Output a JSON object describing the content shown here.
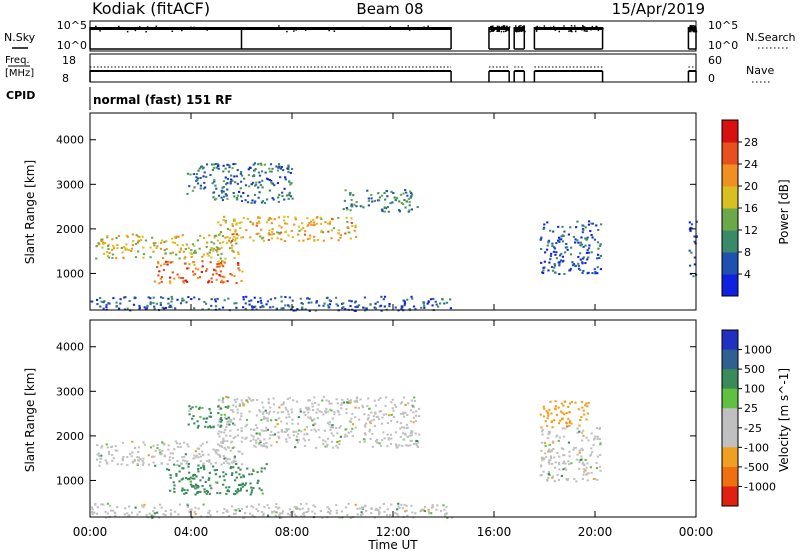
{
  "header": {
    "station": "Kodiak (fitACF)",
    "beam": "Beam 08",
    "date": "15/Apr/2019"
  },
  "top_panels": {
    "nsky_label": "N.Sky",
    "nsky_ticks": [
      "10^5",
      "10^0"
    ],
    "nsearch_label": "N.Search",
    "nsearch_ticks": [
      "10^5",
      "10^0"
    ],
    "freq_label_line1": "Freq.",
    "freq_label_line2": "[MHz]",
    "freq_ticks": [
      "18",
      "8"
    ],
    "nave_label": "Nave",
    "nave_ticks": [
      "60",
      "0"
    ],
    "cpid_label": "CPID",
    "cpid_text": "normal (fast) 151 RF"
  },
  "chart_data": [
    {
      "type": "heatmap",
      "title": "",
      "xlabel": "Time UT",
      "ylabel": "Slant Range [km]",
      "x_ticks": [
        "00:00",
        "04:00",
        "08:00",
        "12:00",
        "16:00",
        "20:00",
        "00:00"
      ],
      "x_range_hours": [
        0,
        24
      ],
      "y_ticks": [
        1000,
        2000,
        3000,
        4000
      ],
      "ylim": [
        180,
        4600
      ],
      "colorbar": {
        "label": "Power [dB]",
        "tick_labels": [
          "4",
          "8",
          "12",
          "16",
          "20",
          "24",
          "28"
        ],
        "colors": [
          "#1020e0",
          "#2050b0",
          "#3a8a6a",
          "#6aa84a",
          "#d8c020",
          "#f09020",
          "#e85020",
          "#d81010"
        ]
      },
      "data_segments_hours": [
        [
          0,
          14.3
        ],
        [
          15.8,
          16.6
        ],
        [
          16.8,
          17.2
        ],
        [
          17.6,
          20.3
        ],
        [
          23.7,
          24
        ]
      ],
      "echo_bands": [
        {
          "t0": 0.2,
          "t1": 6.0,
          "r0": 1350,
          "r1": 1900,
          "level": 20
        },
        {
          "t0": 5.0,
          "t1": 10.5,
          "r0": 1750,
          "r1": 2300,
          "level": 22
        },
        {
          "t0": 10.0,
          "t1": 13.0,
          "r0": 2400,
          "r1": 2900,
          "level": 12
        },
        {
          "t0": 2.5,
          "t1": 6.0,
          "r0": 800,
          "r1": 1300,
          "level": 26
        },
        {
          "t0": 3.8,
          "t1": 8.0,
          "r0": 2600,
          "r1": 3500,
          "level": 10
        },
        {
          "t0": 0.0,
          "t1": 14.3,
          "r0": 180,
          "r1": 500,
          "level": 8
        },
        {
          "t0": 17.8,
          "t1": 20.2,
          "r0": 1000,
          "r1": 2200,
          "level": 8
        },
        {
          "t0": 23.7,
          "t1": 24.0,
          "r0": 900,
          "r1": 2200,
          "level": 8
        }
      ]
    },
    {
      "type": "heatmap",
      "title": "",
      "xlabel": "Time UT",
      "ylabel": "Slant Range [km]",
      "x_ticks": [
        "00:00",
        "04:00",
        "08:00",
        "12:00",
        "16:00",
        "20:00",
        "00:00"
      ],
      "x_range_hours": [
        0,
        24
      ],
      "y_ticks": [
        1000,
        2000,
        3000,
        4000
      ],
      "ylim": [
        180,
        4600
      ],
      "colorbar": {
        "label": "Velocity [m s^-1]",
        "tick_labels": [
          "1000",
          "500",
          "100",
          "25",
          "-25",
          "-100",
          "-500",
          "-1000"
        ],
        "colors": [
          "#2030c0",
          "#306090",
          "#3a8a5a",
          "#60c040",
          "#c0c0c0",
          "#c0c0c0",
          "#f0a020",
          "#f07010",
          "#e02010"
        ]
      },
      "data_segments_hours": [
        [
          0,
          14.3
        ],
        [
          15.8,
          16.6
        ],
        [
          16.8,
          17.2
        ],
        [
          17.6,
          20.3
        ],
        [
          23.7,
          24
        ]
      ],
      "echo_bands": [
        {
          "t0": 0.2,
          "t1": 6.0,
          "r0": 1350,
          "r1": 1900,
          "level": 0
        },
        {
          "t0": 5.0,
          "t1": 13.0,
          "r0": 1750,
          "r1": 2900,
          "level": 0
        },
        {
          "t0": 3.0,
          "t1": 7.0,
          "r0": 700,
          "r1": 1400,
          "level": 200
        },
        {
          "t0": 3.8,
          "t1": 5.5,
          "r0": 2200,
          "r1": 2700,
          "level": 150
        },
        {
          "t0": 17.8,
          "t1": 19.8,
          "r0": 2200,
          "r1": 2800,
          "level": -400
        },
        {
          "t0": 0.0,
          "t1": 14.3,
          "r0": 180,
          "r1": 500,
          "level": 0
        },
        {
          "t0": 17.8,
          "t1": 20.2,
          "r0": 1000,
          "r1": 2200,
          "level": 0
        }
      ]
    }
  ]
}
